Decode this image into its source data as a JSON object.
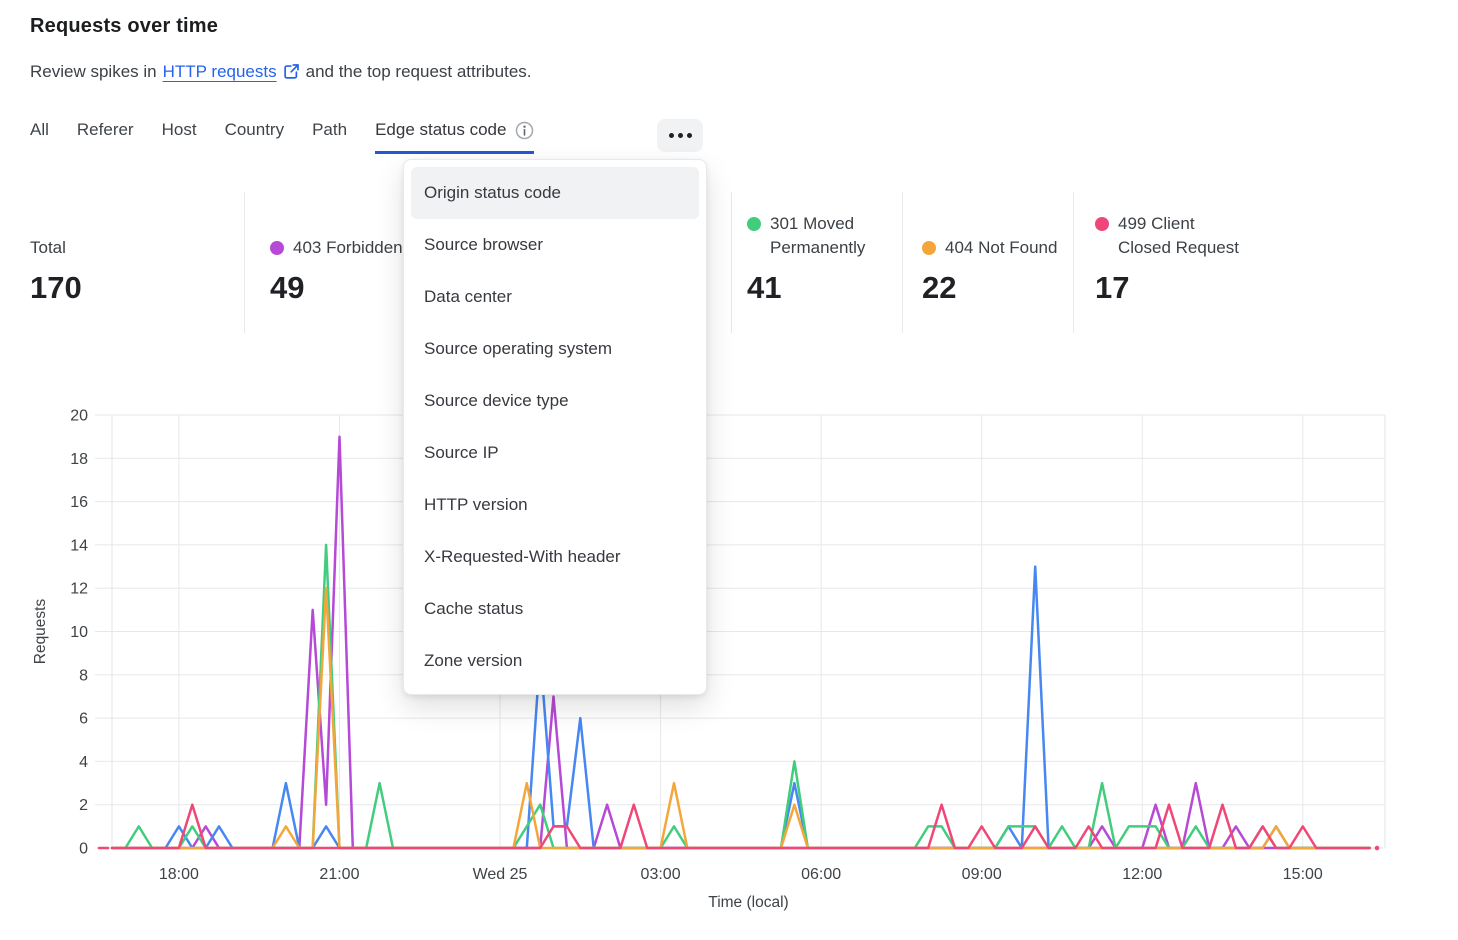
{
  "header": {
    "title": "Requests over time",
    "subtitle_prefix": "Review spikes in",
    "link_text": "HTTP requests",
    "subtitle_suffix": "and the top request attributes."
  },
  "icons": {
    "external_link": "boxed-arrow-up-right",
    "info": "circled-i",
    "more": "horizontal-ellipsis",
    "stat_dot": "filled-circle"
  },
  "tabs": {
    "items": [
      "All",
      "Referer",
      "Host",
      "Country",
      "Path",
      "Edge status code"
    ],
    "active": "Edge status code"
  },
  "dropdown": {
    "items": [
      "Origin status code",
      "Source browser",
      "Data center",
      "Source operating system",
      "Source device type",
      "Source IP",
      "HTTP version",
      "X-Requested-With header",
      "Cache status",
      "Zone version"
    ],
    "highlighted": "Origin status code"
  },
  "stats": {
    "cards": [
      {
        "label": "Total",
        "value": "170",
        "color": null
      },
      {
        "label": "403 Forbidden",
        "value": "49",
        "color": "#b649d6"
      },
      {
        "label": "301 Moved Permanently",
        "value": "41",
        "color": "#42cd7e"
      },
      {
        "label": "404 Not Found",
        "value": "22",
        "color": "#f5a63b"
      },
      {
        "label": "499 Client Closed Request",
        "value": "17",
        "color": "#f0477b"
      }
    ]
  },
  "chart_data": {
    "type": "line",
    "title": "Requests over time",
    "xlabel": "Time (local)",
    "ylabel": "Requests",
    "ylim": [
      0,
      20
    ],
    "yticks": [
      0,
      2,
      4,
      6,
      8,
      10,
      12,
      14,
      16,
      18,
      20
    ],
    "grid": true,
    "legend_position": "none",
    "x_start_time": "16:45",
    "x_interval_minutes": 15,
    "xtick_indices": [
      5,
      17,
      29,
      41,
      53,
      65,
      77,
      89
    ],
    "xtick_labels": [
      "18:00",
      "21:00",
      "Wed 25",
      "03:00",
      "06:00",
      "09:00",
      "12:00",
      "15:00"
    ],
    "series": [
      {
        "name": "403 Forbidden",
        "color": "#b649d6",
        "values": [
          0,
          0,
          0,
          0,
          0,
          0,
          0,
          1,
          0,
          0,
          0,
          0,
          0,
          0,
          0,
          11,
          2,
          19,
          0,
          0,
          0,
          0,
          0,
          0,
          0,
          0,
          0,
          0,
          0,
          0,
          0,
          0,
          0,
          7,
          0,
          0,
          0,
          2,
          0,
          0,
          0,
          0,
          0,
          0,
          0,
          0,
          0,
          0,
          0,
          0,
          0,
          0,
          0,
          0,
          0,
          0,
          0,
          0,
          0,
          0,
          0,
          0,
          0,
          0,
          0,
          0,
          0,
          0,
          0,
          0,
          0,
          0,
          0,
          0,
          1,
          0,
          0,
          0,
          2,
          0,
          0,
          3,
          0,
          0,
          1,
          0,
          0,
          0,
          0,
          0,
          0,
          0,
          0,
          0,
          0
        ]
      },
      {
        "name": "",
        "color": "#4687f2",
        "values": [
          0,
          0,
          0,
          0,
          0,
          1,
          0,
          0,
          1,
          0,
          0,
          0,
          0,
          3,
          0,
          0,
          1,
          0,
          0,
          0,
          0,
          0,
          0,
          0,
          0,
          0,
          0,
          0,
          0,
          0,
          0,
          0,
          9,
          1,
          1,
          6,
          0,
          0,
          0,
          0,
          0,
          0,
          0,
          0,
          0,
          0,
          0,
          0,
          0,
          0,
          0,
          3,
          0,
          0,
          0,
          0,
          0,
          0,
          0,
          0,
          0,
          0,
          0,
          0,
          0,
          0,
          0,
          1,
          0,
          13,
          0,
          0,
          0,
          0,
          0,
          0,
          0,
          0,
          0,
          0,
          0,
          0,
          0,
          0,
          0,
          0,
          0,
          1,
          0,
          0,
          0,
          0,
          0,
          0,
          0
        ]
      },
      {
        "name": "301 Moved Permanently",
        "color": "#42cd7e",
        "values": [
          0,
          0,
          1,
          0,
          0,
          0,
          1,
          0,
          0,
          0,
          0,
          0,
          0,
          0,
          0,
          0,
          14,
          0,
          0,
          0,
          3,
          0,
          0,
          0,
          0,
          0,
          0,
          0,
          0,
          0,
          0,
          1,
          2,
          0,
          0,
          0,
          0,
          0,
          0,
          0,
          0,
          0,
          1,
          0,
          0,
          0,
          0,
          0,
          0,
          0,
          0,
          4,
          0,
          0,
          0,
          0,
          0,
          0,
          0,
          0,
          0,
          1,
          1,
          0,
          0,
          0,
          0,
          1,
          1,
          1,
          0,
          1,
          0,
          0,
          3,
          0,
          1,
          1,
          1,
          0,
          0,
          1,
          0,
          0,
          0,
          0,
          1,
          0,
          0,
          0,
          0,
          0,
          0,
          0,
          0
        ]
      },
      {
        "name": "404 Not Found",
        "color": "#f5a63b",
        "values": [
          0,
          0,
          0,
          0,
          0,
          0,
          0,
          0,
          0,
          0,
          0,
          0,
          0,
          1,
          0,
          0,
          12,
          0,
          0,
          0,
          0,
          0,
          0,
          0,
          0,
          0,
          0,
          0,
          0,
          0,
          0,
          3,
          0,
          0,
          0,
          0,
          0,
          0,
          0,
          0,
          0,
          0,
          3,
          0,
          0,
          0,
          0,
          0,
          0,
          0,
          0,
          2,
          0,
          0,
          0,
          0,
          0,
          0,
          0,
          0,
          0,
          0,
          0,
          0,
          0,
          0,
          0,
          0,
          0,
          0,
          0,
          0,
          0,
          0,
          0,
          0,
          0,
          0,
          0,
          0,
          0,
          0,
          0,
          0,
          0,
          0,
          0,
          1,
          0,
          0,
          0,
          0,
          0,
          0,
          0
        ]
      },
      {
        "name": "499 Client Closed Request",
        "color": "#ef4876",
        "values": [
          0,
          0,
          0,
          0,
          0,
          0,
          2,
          0,
          0,
          0,
          0,
          0,
          0,
          0,
          0,
          0,
          0,
          0,
          0,
          0,
          0,
          0,
          0,
          0,
          0,
          0,
          0,
          0,
          0,
          0,
          0,
          0,
          0,
          1,
          1,
          0,
          0,
          0,
          0,
          2,
          0,
          0,
          0,
          0,
          0,
          0,
          0,
          0,
          0,
          0,
          0,
          0,
          0,
          0,
          0,
          0,
          0,
          0,
          0,
          0,
          0,
          0,
          2,
          0,
          0,
          1,
          0,
          0,
          0,
          1,
          0,
          0,
          0,
          1,
          0,
          0,
          0,
          0,
          0,
          2,
          0,
          0,
          0,
          2,
          0,
          0,
          1,
          0,
          0,
          1,
          0,
          0,
          0,
          0,
          0
        ]
      }
    ]
  }
}
